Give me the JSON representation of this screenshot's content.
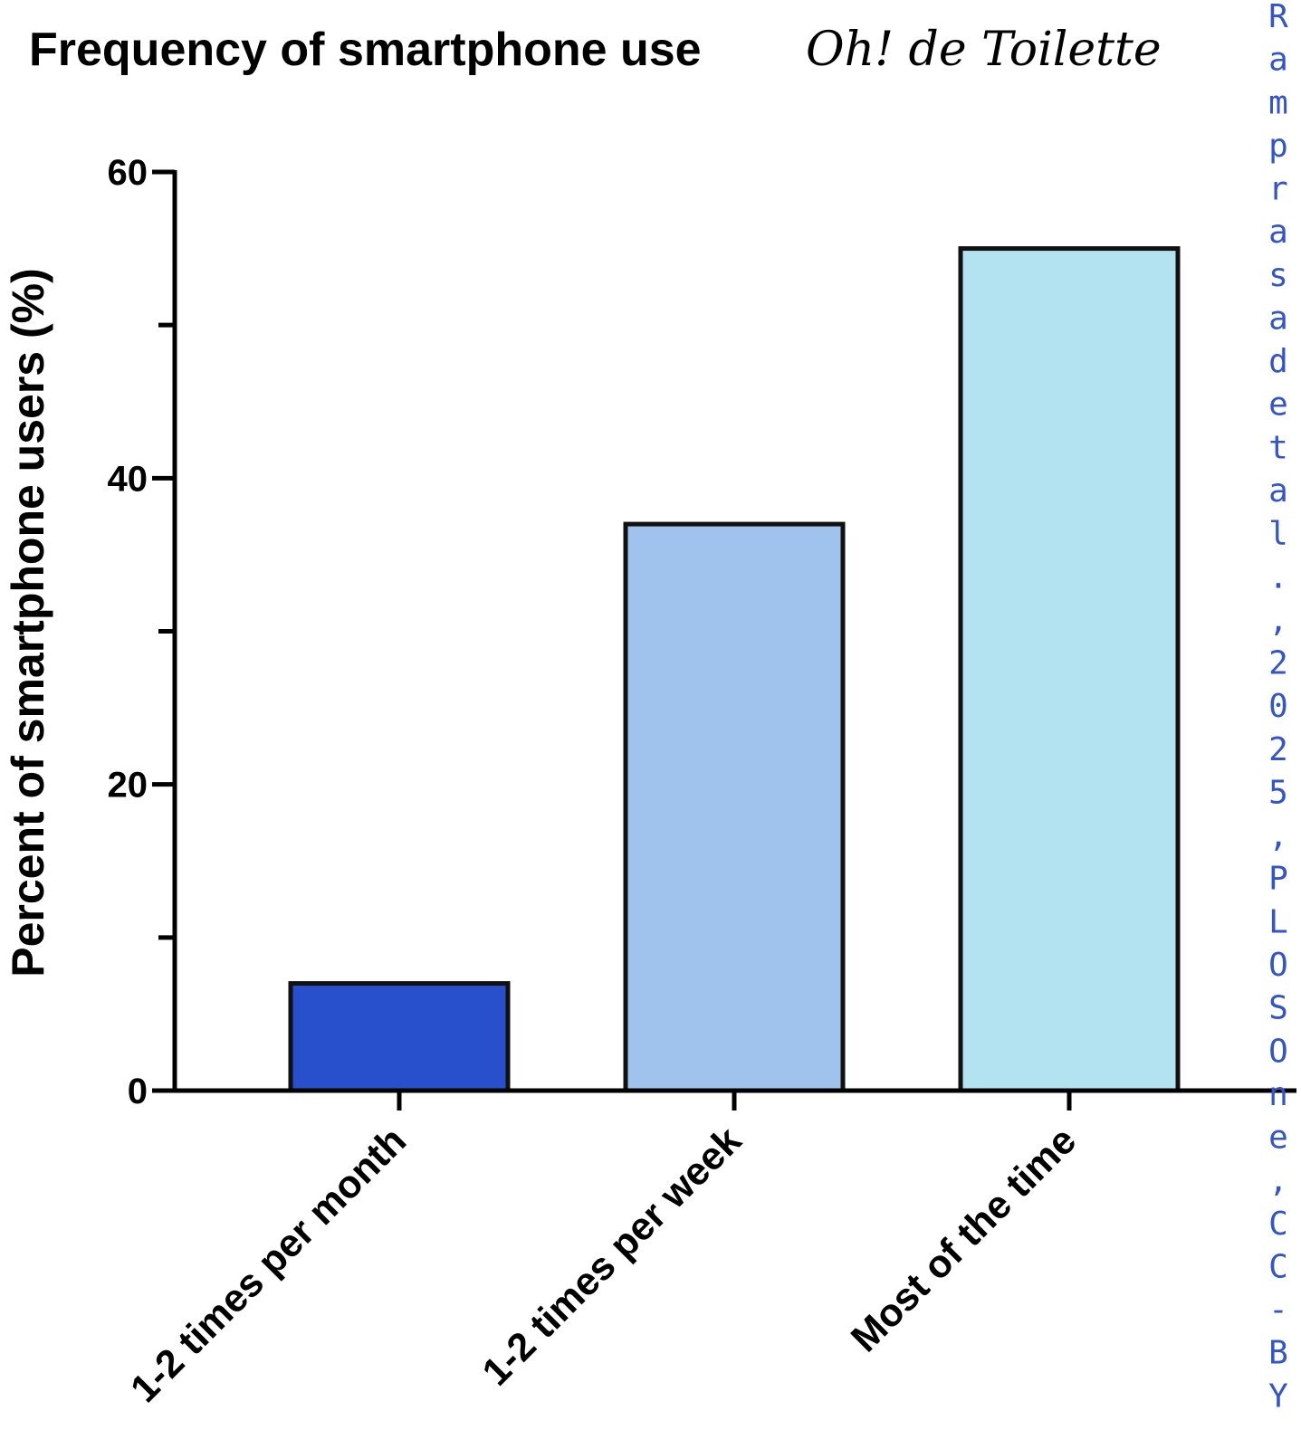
{
  "chart_data": {
    "type": "bar",
    "title": "Frequency of smartphone use",
    "subtitle": "Oh! de Toilette",
    "xlabel": "",
    "ylabel": "Percent of smartphone users (%)",
    "ylim": [
      0,
      60
    ],
    "yticks": [
      0,
      20,
      40,
      60
    ],
    "categories": [
      "1-2 times per month",
      "1-2 times per week",
      "Most of the time"
    ],
    "values": [
      7,
      37,
      55
    ],
    "colors": [
      "#2850cc",
      "#9fc3ec",
      "#b3e3f0"
    ],
    "grid": false
  },
  "watermark": "Ramprasad et al., 2025, PLOS One, CC-BY"
}
